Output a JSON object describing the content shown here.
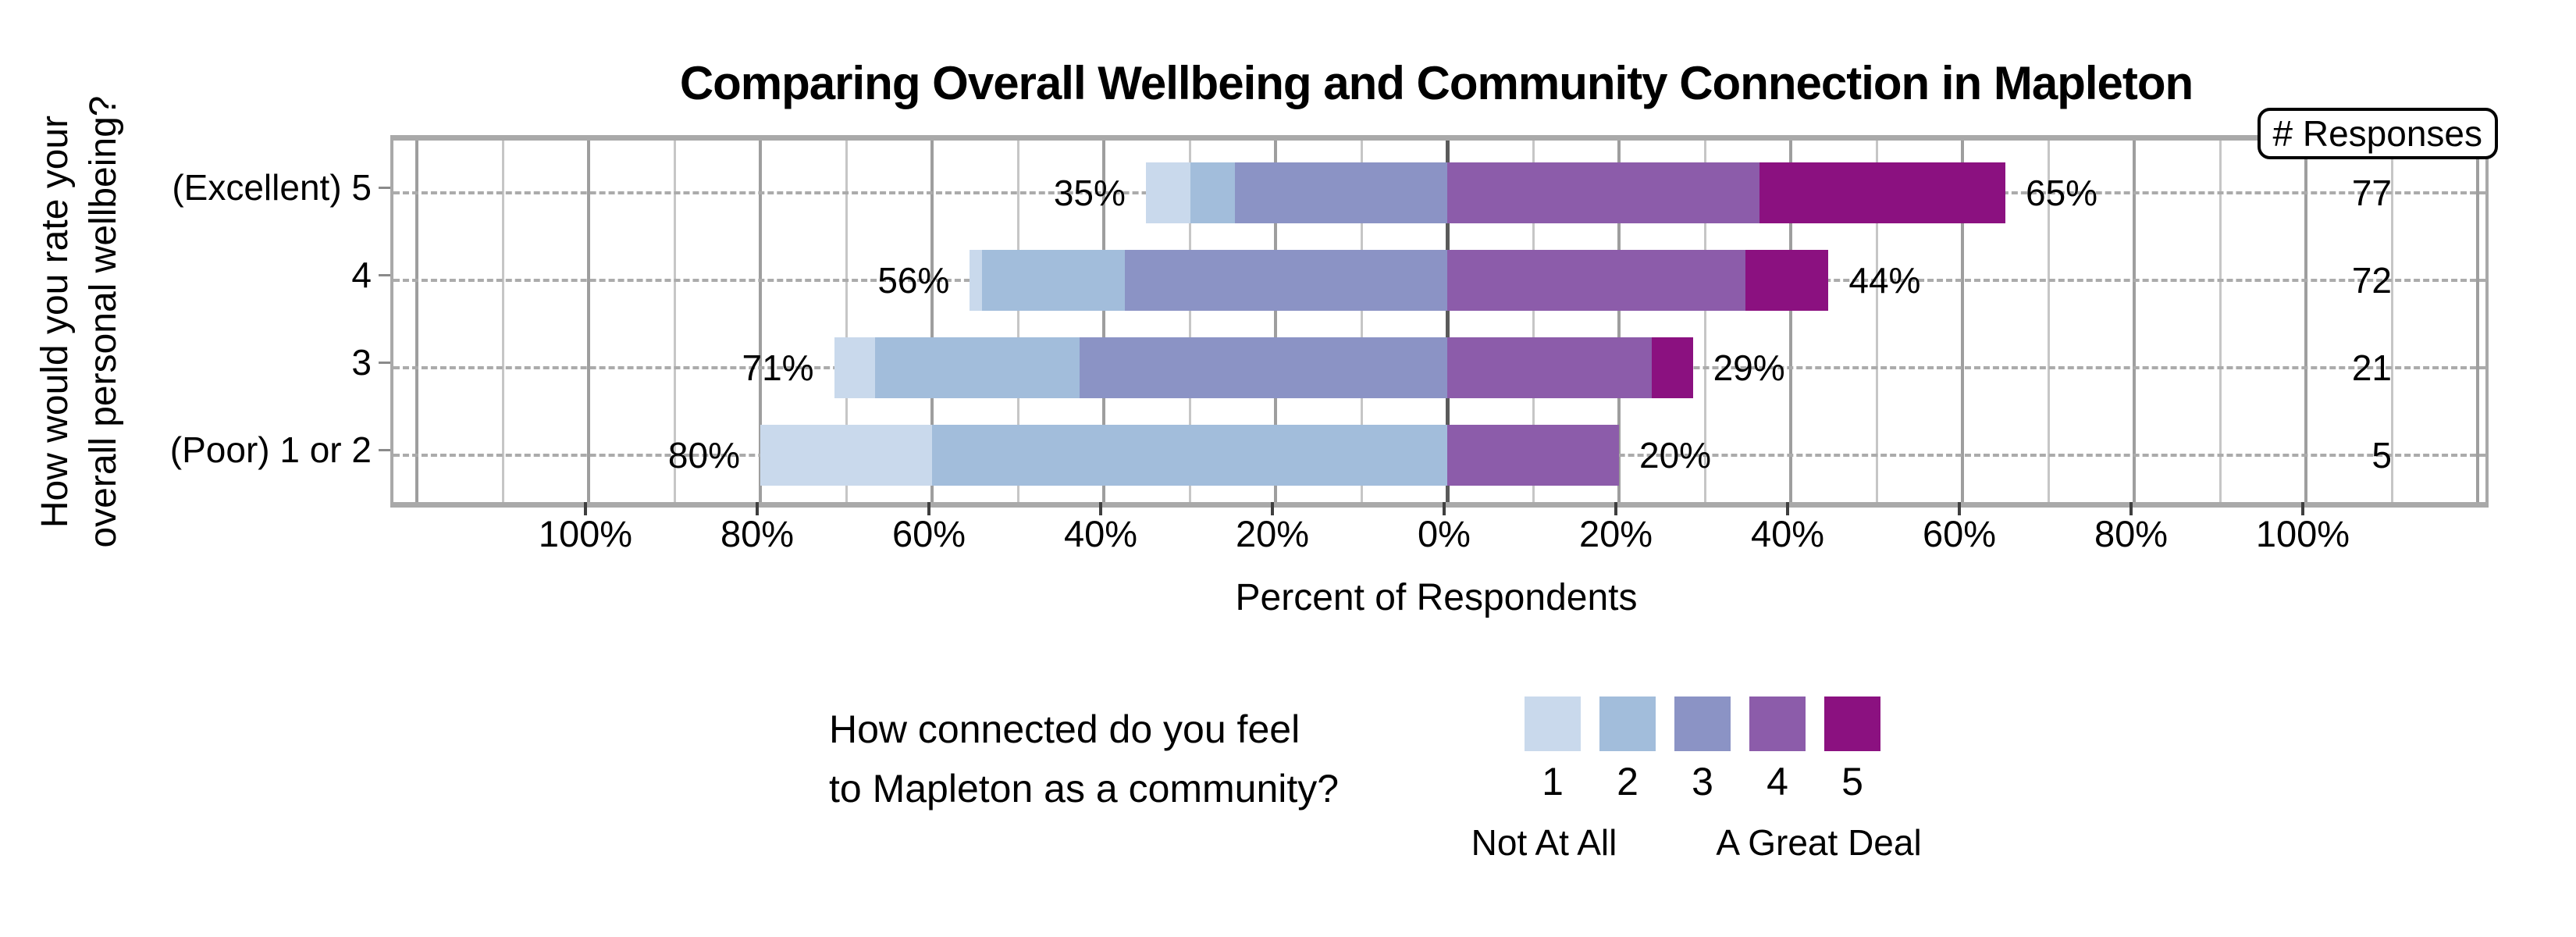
{
  "chart_data": {
    "type": "bar",
    "subtype": "diverging-stacked-likert",
    "title": "Comparing Overall Wellbeing and Community Connection in Mapleton",
    "xlabel": "Percent of Respondents",
    "ylabel_lines": [
      "How would you rate your",
      "overall personal wellbeing?"
    ],
    "responses_header": "# Responses",
    "x_axis": {
      "tick_labels": [
        "100%",
        "80%",
        "60%",
        "40%",
        "20%",
        "0%",
        "20%",
        "40%",
        "60%",
        "80%",
        "100%"
      ],
      "tick_positions_pct": [
        -100,
        -80,
        -60,
        -40,
        -20,
        0,
        20,
        40,
        60,
        80,
        100
      ],
      "gridline_step_pct": 10,
      "range_pct": [
        -120,
        120
      ]
    },
    "legend": {
      "question_lines": [
        "How connected do you feel",
        "to Mapleton as a community?"
      ],
      "levels": [
        "1",
        "2",
        "3",
        "4",
        "5"
      ],
      "level_colors": [
        "#c9d9ec",
        "#a2bddb",
        "#8b93c5",
        "#8c5caa",
        "#8b1180"
      ],
      "min_label": "Not At All",
      "max_label": "A Great Deal",
      "levels_on_left_of_zero": 3
    },
    "rows": [
      {
        "category": "(Excellent) 5",
        "left_label": "35%",
        "right_label": "65%",
        "n": 77,
        "segments_pct": [
          5.2,
          5.2,
          24.7,
          36.4,
          28.6
        ]
      },
      {
        "category": "4",
        "left_label": "56%",
        "right_label": "44%",
        "n": 72,
        "segments_pct": [
          1.4,
          16.7,
          37.5,
          34.7,
          9.7
        ]
      },
      {
        "category": "3",
        "left_label": "71%",
        "right_label": "29%",
        "n": 21,
        "segments_pct": [
          4.8,
          23.8,
          42.8,
          23.8,
          4.8
        ]
      },
      {
        "category": "(Poor) 1 or 2",
        "left_label": "80%",
        "right_label": "20%",
        "n": 5,
        "segments_pct": [
          20,
          60,
          0,
          20,
          0
        ]
      }
    ]
  }
}
